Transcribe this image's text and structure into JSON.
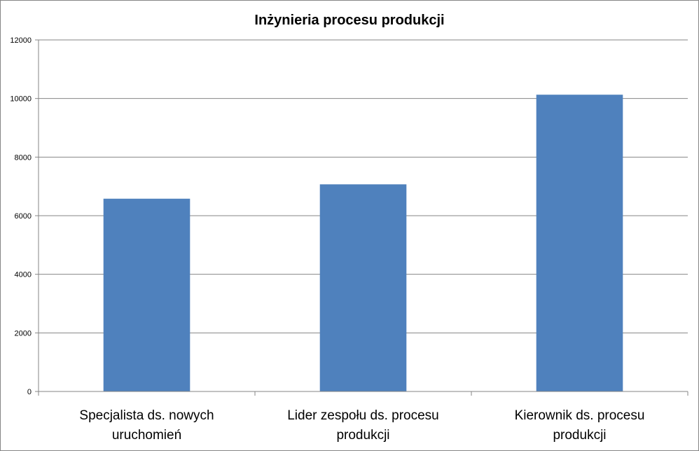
{
  "chart_data": {
    "type": "bar",
    "title": "Inżynieria procesu produkcji",
    "xlabel": "",
    "ylabel": "",
    "categories": [
      [
        "Specjalista ds. nowych",
        "uruchomień"
      ],
      [
        "Lider zespołu ds. procesu",
        "produkcji"
      ],
      [
        "Kierownik ds. procesu",
        "produkcji"
      ]
    ],
    "values": [
      6580,
      7070,
      10130
    ],
    "ylim": [
      0,
      12000
    ],
    "yticks": [
      "0",
      "2000",
      "4000",
      "6000",
      "8000",
      "10000",
      "12000"
    ],
    "grid": true,
    "legend": "none",
    "colors": {
      "bar": "#4F81BD",
      "grid": "#868686",
      "axis": "#868686"
    }
  }
}
